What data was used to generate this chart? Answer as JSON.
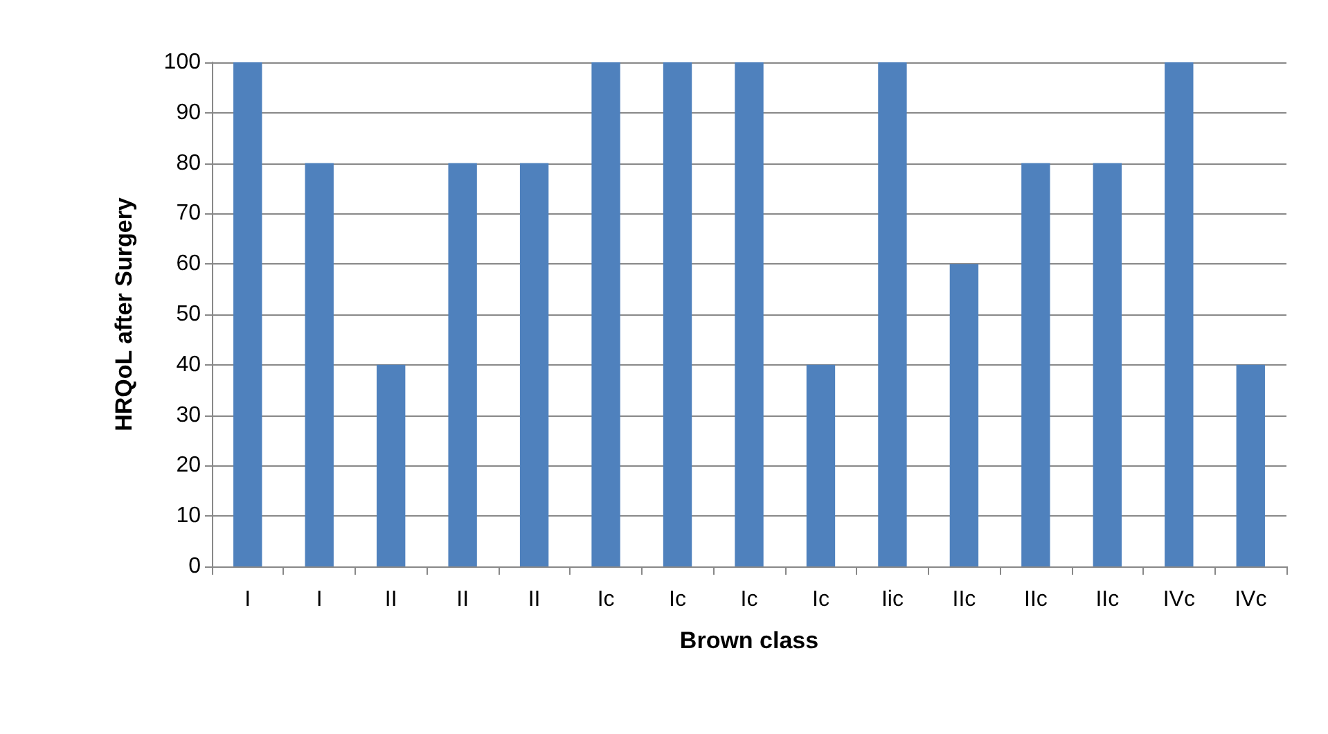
{
  "chart_data": {
    "type": "bar",
    "xlabel": "Brown class",
    "ylabel": "HRQoL after Surgery",
    "categories": [
      "I",
      "I",
      "II",
      "II",
      "II",
      "Ic",
      "Ic",
      "Ic",
      "Ic",
      "Iic",
      "IIc",
      "IIc",
      "IIc",
      "IVc",
      "IVc"
    ],
    "values": [
      100,
      80,
      40,
      80,
      80,
      100,
      100,
      100,
      40,
      100,
      60,
      80,
      80,
      100,
      40
    ],
    "color": "#4f81bd",
    "ylim": [
      0,
      100
    ],
    "yticks": [
      0,
      10,
      20,
      30,
      40,
      50,
      60,
      70,
      80,
      90,
      100
    ],
    "grid": "y"
  }
}
